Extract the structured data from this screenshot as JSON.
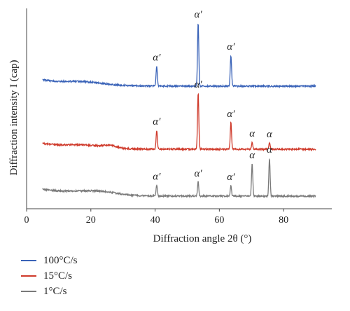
{
  "chart_data": {
    "type": "line",
    "title": "",
    "xlabel": "Diffraction angle 2θ (°)",
    "ylabel": "Diffraction intensity I (cap)",
    "xlim": [
      0,
      95
    ],
    "x_ticks": [
      0,
      20,
      40,
      60,
      80
    ],
    "y_ticks": [],
    "grid": false,
    "legend_placement": "bottom-left",
    "peak_symbol_alpha_prime": "α′",
    "peak_symbol_alpha": "α",
    "series": [
      {
        "name": "100°C/s",
        "color": "#3a63b8",
        "x_range": [
          5,
          90
        ],
        "peaks": [
          {
            "x": 40.5,
            "label": "α′"
          },
          {
            "x": 53.4,
            "label": "α′"
          },
          {
            "x": 63.6,
            "label": "α′"
          }
        ]
      },
      {
        "name": "15°C/s",
        "color": "#cf3a2b",
        "x_range": [
          5,
          90
        ],
        "peaks": [
          {
            "x": 40.5,
            "label": "α′"
          },
          {
            "x": 53.4,
            "label": "α′"
          },
          {
            "x": 63.6,
            "label": "α′"
          },
          {
            "x": 70.2,
            "label": "α"
          },
          {
            "x": 75.6,
            "label": "α"
          }
        ]
      },
      {
        "name": "1°C/s",
        "color": "#7a7a7a",
        "x_range": [
          5,
          90
        ],
        "peaks": [
          {
            "x": 40.5,
            "label": "α′"
          },
          {
            "x": 53.4,
            "label": "α′"
          },
          {
            "x": 63.6,
            "label": "α′"
          },
          {
            "x": 70.2,
            "label": "α"
          },
          {
            "x": 75.6,
            "label": "α"
          }
        ]
      }
    ]
  }
}
